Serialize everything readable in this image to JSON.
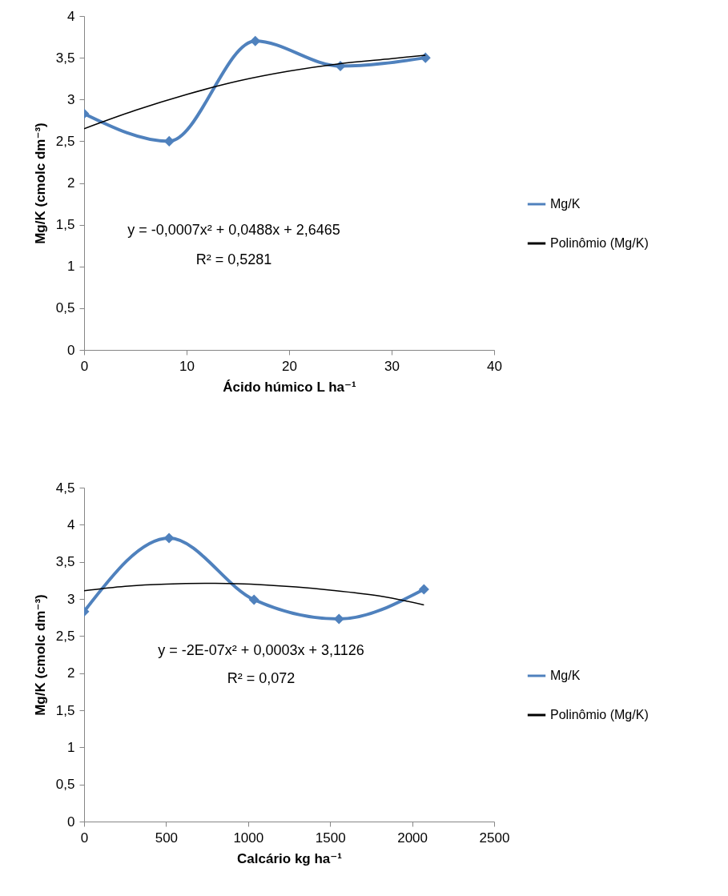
{
  "chart_data": [
    {
      "type": "line",
      "xlabel": "Ácido húmico L ha⁻¹",
      "ylabel": "Mg/K (cmolc dm⁻³)",
      "xlim": [
        0,
        40
      ],
      "xticks": [
        0,
        10,
        20,
        30,
        40
      ],
      "ylim": [
        0,
        4
      ],
      "yticks": [
        0,
        {
          "value": 0.5,
          "label": "0,5"
        },
        1,
        {
          "value": 1.5,
          "label": "1,5"
        },
        2,
        {
          "value": 2.5,
          "label": "2,5"
        },
        3,
        {
          "value": 3.5,
          "label": "3,5"
        },
        4
      ],
      "legend": "right",
      "marker": "diamond",
      "line_style": "solid",
      "series": [
        {
          "name": "Mg/K",
          "color": "#4f81bd",
          "x": [
            0,
            8.3,
            16.7,
            25,
            33.3
          ],
          "values": [
            2.83,
            2.5,
            3.7,
            3.4,
            3.5
          ]
        },
        {
          "name": "Polinômio (Mg/K)",
          "color": "#000000",
          "type": "line",
          "marker": "none",
          "x": [
            0,
            5,
            10,
            15,
            20,
            25,
            30,
            33.3
          ],
          "values": [
            2.65,
            2.87,
            3.06,
            3.22,
            3.34,
            3.43,
            3.49,
            3.53
          ]
        }
      ],
      "annotations": [
        "y = -0,0007x² + 0,0488x + 2,6465",
        "R² = 0,5281"
      ]
    },
    {
      "type": "line",
      "xlabel": "Calcário kg ha⁻¹",
      "ylabel": "Mg/K (cmolc dm⁻³)",
      "xlim": [
        0,
        2500
      ],
      "xticks": [
        0,
        500,
        1000,
        1500,
        2000,
        2500
      ],
      "ylim": [
        0,
        4.5
      ],
      "yticks": [
        0,
        {
          "value": 0.5,
          "label": "0,5"
        },
        1,
        {
          "value": 1.5,
          "label": "1,5"
        },
        2,
        {
          "value": 2.5,
          "label": "2,5"
        },
        3,
        {
          "value": 3.5,
          "label": "3,5"
        },
        4,
        {
          "value": 4.5,
          "label": "4,5"
        }
      ],
      "legend": "right",
      "marker": "diamond",
      "line_style": "solid",
      "series": [
        {
          "name": "Mg/K",
          "color": "#4f81bd",
          "x": [
            0,
            518,
            1036,
            1554,
            2072
          ],
          "values": [
            2.83,
            3.82,
            2.99,
            2.73,
            3.13
          ]
        },
        {
          "name": "Polinômio (Mg/K)",
          "color": "#000000",
          "type": "line",
          "marker": "none",
          "x": [
            0,
            250,
            500,
            800,
            1100,
            1500,
            1800,
            2072
          ],
          "values": [
            3.11,
            3.17,
            3.2,
            3.21,
            3.19,
            3.12,
            3.04,
            2.92
          ]
        }
      ],
      "annotations": [
        "y = -2E-07x² + 0,0003x + 3,1126",
        "R² = 0,072"
      ]
    }
  ]
}
